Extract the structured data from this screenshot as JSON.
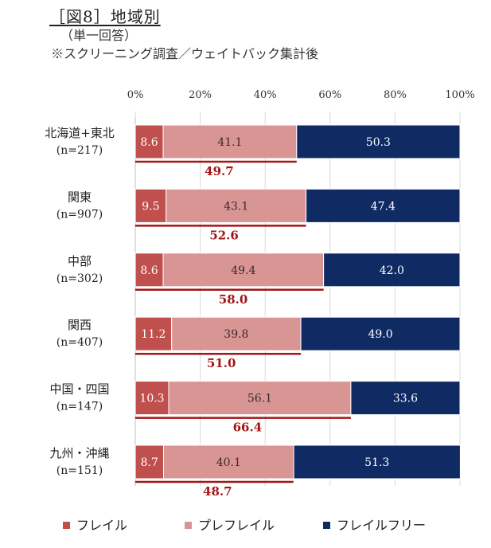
{
  "title": "［図8］地域別",
  "subtitle1": "（単一回答）",
  "subtitle2": "※スクリーニング調査／ウェイトバック集計後",
  "chart_data": {
    "type": "bar",
    "orientation": "horizontal",
    "stacked": true,
    "xlim": [
      0,
      100
    ],
    "x_ticks": [
      "0%",
      "20%",
      "40%",
      "60%",
      "80%",
      "100%"
    ],
    "categories": [
      {
        "name": "北海道+東北",
        "n": "(n=217)"
      },
      {
        "name": "関東",
        "n": "(n=907)"
      },
      {
        "name": "中部",
        "n": "(n=302)"
      },
      {
        "name": "関西",
        "n": "(n=407)"
      },
      {
        "name": "中国・四国",
        "n": "(n=147)"
      },
      {
        "name": "九州・沖縄",
        "n": "(n=151)"
      }
    ],
    "series": [
      {
        "name": "フレイル",
        "color": "#c0504d",
        "values": [
          8.6,
          9.5,
          8.6,
          11.2,
          10.3,
          8.7
        ],
        "labels": [
          "8.6",
          "9.5",
          "8.6",
          "11.2",
          "10.3",
          "8.7"
        ]
      },
      {
        "name": "プレフレイル",
        "color": "#d99594",
        "values": [
          41.1,
          43.1,
          49.4,
          39.8,
          56.1,
          40.1
        ],
        "labels": [
          "41.1",
          "43.1",
          "49.4",
          "39.8",
          "56.1",
          "40.1"
        ]
      },
      {
        "name": "フレイルフリー",
        "color": "#102a63",
        "values": [
          50.3,
          47.4,
          42.0,
          49.0,
          33.6,
          51.3
        ],
        "labels": [
          "50.3",
          "47.4",
          "42.0",
          "49.0",
          "33.6",
          "51.3"
        ]
      }
    ],
    "totals": {
      "color": "#a31515",
      "values": [
        49.7,
        52.6,
        58.0,
        51.0,
        66.4,
        48.7
      ],
      "labels": [
        "49.7",
        "52.6",
        "58.0",
        "51.0",
        "66.4",
        "48.7"
      ]
    }
  }
}
